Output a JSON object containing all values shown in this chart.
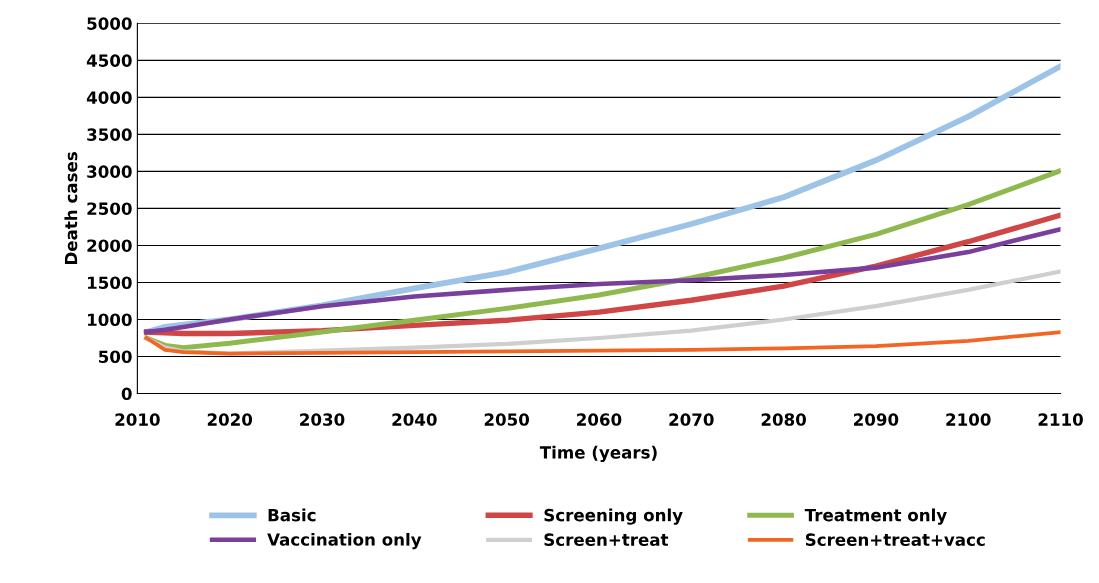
{
  "chart_data": {
    "type": "line",
    "xlabel": "Time (years)",
    "ylabel": "Death cases",
    "x": [
      2011,
      2013,
      2015,
      2020,
      2030,
      2040,
      2050,
      2060,
      2070,
      2080,
      2090,
      2100,
      2110
    ],
    "series": [
      {
        "name": "Basic",
        "color": "#9dc3e6",
        "values": [
          830,
          900,
          930,
          1000,
          1190,
          1420,
          1640,
          1960,
          2290,
          2650,
          3150,
          3740,
          4420
        ]
      },
      {
        "name": "Screening only",
        "color": "#d04545",
        "values": [
          830,
          820,
          810,
          810,
          850,
          920,
          990,
          1100,
          1260,
          1450,
          1720,
          2050,
          2410
        ]
      },
      {
        "name": "Treatment only",
        "color": "#8fb84f",
        "values": [
          750,
          650,
          620,
          680,
          830,
          990,
          1150,
          1330,
          1560,
          1830,
          2150,
          2550,
          3010
        ]
      },
      {
        "name": "Vaccination only",
        "color": "#7a3f9d",
        "values": [
          830,
          860,
          900,
          1000,
          1180,
          1310,
          1400,
          1480,
          1530,
          1600,
          1700,
          1910,
          2220
        ]
      },
      {
        "name": "Screen+treat",
        "color": "#cfcfcf",
        "values": [
          750,
          620,
          570,
          540,
          580,
          620,
          670,
          750,
          850,
          1000,
          1180,
          1400,
          1650
        ]
      },
      {
        "name": "Screen+treat+vacc",
        "color": "#f26522",
        "values": [
          750,
          590,
          560,
          540,
          550,
          560,
          570,
          580,
          590,
          610,
          640,
          710,
          830
        ]
      }
    ],
    "xlim": [
      2010,
      2110
    ],
    "xticks": [
      2010,
      2020,
      2030,
      2040,
      2050,
      2060,
      2070,
      2080,
      2090,
      2100,
      2110
    ],
    "ylim": [
      0,
      5000
    ],
    "yticks": [
      0,
      500,
      1000,
      1500,
      2000,
      2500,
      3000,
      3500,
      4000,
      4500,
      5000
    ],
    "grid": "y",
    "legend": "bottom",
    "marker": "none",
    "line_style": "solid"
  }
}
